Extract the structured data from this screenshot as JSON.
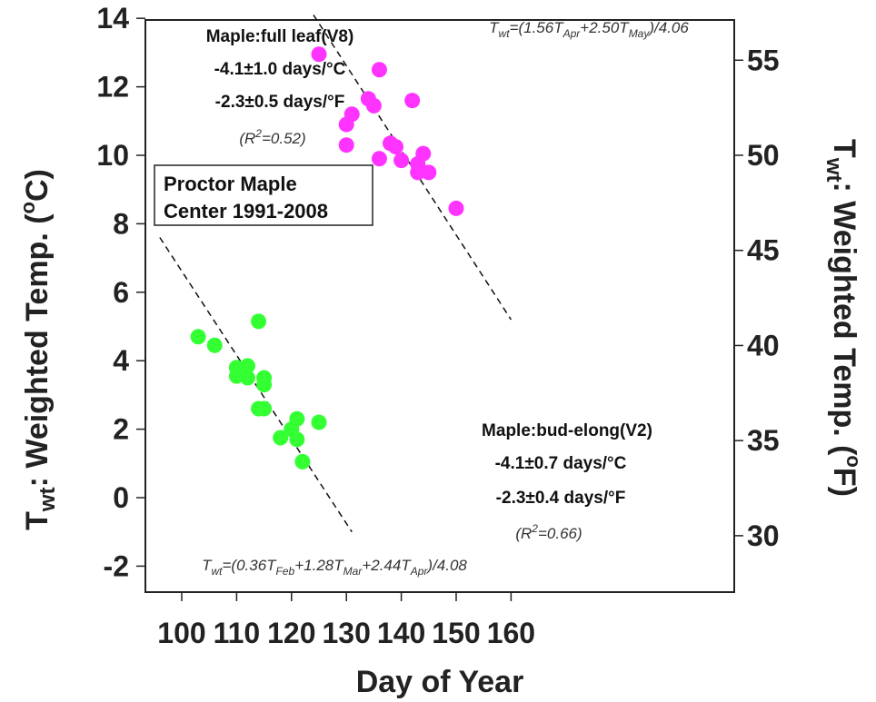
{
  "chart_data": {
    "type": "scatter",
    "xlabel": "Day of Year",
    "ylabel_left": {
      "main": "T",
      "sub": "wt",
      "rest": ": Weighted Temp. (",
      "sup": "o",
      "end": "C)"
    },
    "ylabel_right": {
      "main": "T",
      "sub": "wt",
      "rest": ": Weighted Temp. (",
      "sup": "o",
      "end": "F)"
    },
    "xlim": [
      96,
      160
    ],
    "ylim": [
      -2.8,
      14
    ],
    "x_ticks": [
      100,
      110,
      120,
      130,
      140,
      150,
      160
    ],
    "y_ticks": [
      -2,
      0,
      2,
      4,
      6,
      8,
      10,
      12,
      14
    ],
    "y_right_ticks": [
      30,
      35,
      40,
      45,
      50,
      55
    ],
    "grid": false,
    "series": [
      {
        "name": "Maple:full leaf(V8)",
        "color": "#ff33ff",
        "points": [
          [
            125,
            12.95
          ],
          [
            130,
            10.3
          ],
          [
            130,
            10.9
          ],
          [
            131,
            11.2
          ],
          [
            134,
            11.65
          ],
          [
            135,
            11.45
          ],
          [
            136,
            12.5
          ],
          [
            136,
            9.9
          ],
          [
            138,
            10.35
          ],
          [
            139,
            10.25
          ],
          [
            140,
            9.85
          ],
          [
            142,
            11.6
          ],
          [
            143,
            9.5
          ],
          [
            143,
            9.75
          ],
          [
            144,
            10.05
          ],
          [
            145,
            9.5
          ],
          [
            150,
            8.45
          ]
        ],
        "fit_line": [
          [
            124,
            14.1
          ],
          [
            160,
            5.2
          ]
        ]
      },
      {
        "name": "Maple:bud-elong(V2)",
        "color": "#33ff33",
        "points": [
          [
            103,
            4.7
          ],
          [
            106,
            4.45
          ],
          [
            110,
            3.8
          ],
          [
            110,
            3.55
          ],
          [
            112,
            3.85
          ],
          [
            112,
            3.5
          ],
          [
            114,
            5.15
          ],
          [
            114,
            2.6
          ],
          [
            115,
            3.5
          ],
          [
            115,
            3.3
          ],
          [
            115,
            2.6
          ],
          [
            118,
            1.75
          ],
          [
            120,
            2.0
          ],
          [
            121,
            2.3
          ],
          [
            121,
            1.7
          ],
          [
            122,
            1.05
          ],
          [
            125,
            2.2
          ]
        ],
        "fit_line": [
          [
            96,
            7.6
          ],
          [
            131,
            -1.0
          ]
        ]
      }
    ],
    "annotations": {
      "full_leaf": {
        "title": "Maple:full leaf(V8)",
        "rate_c": "-4.1±1.0 days/°C",
        "rate_f": "-2.3±0.5 days/°F",
        "r2": {
          "pre": "(R",
          "sup": "2",
          "post": "=0.52)"
        },
        "formula": {
          "t": "T",
          "t_sub": "wt",
          "eq": "=(1.56T",
          "a_sub": "Apr",
          "plus": "+2.50T",
          "b_sub": "May",
          "end": ")/4.06"
        }
      },
      "bud_elong": {
        "title": "Maple:bud-elong(V2)",
        "rate_c": "-4.1±0.7 days/°C",
        "rate_f": "-2.3±0.4 days/°F",
        "r2": {
          "pre": "(R",
          "sup": "2",
          "post": "=0.66)"
        },
        "formula": {
          "t": "T",
          "t_sub": "wt",
          "eq": "=(0.36T",
          "a_sub": "Feb",
          "plus": "+1.28T",
          "b_sub": "Mar",
          "plus2": "+2.44T",
          "c_sub": "Apr",
          "end": ")/4.08"
        }
      },
      "site_box": {
        "line1": "Proctor Maple",
        "line2": "Center 1991-2008"
      }
    }
  }
}
